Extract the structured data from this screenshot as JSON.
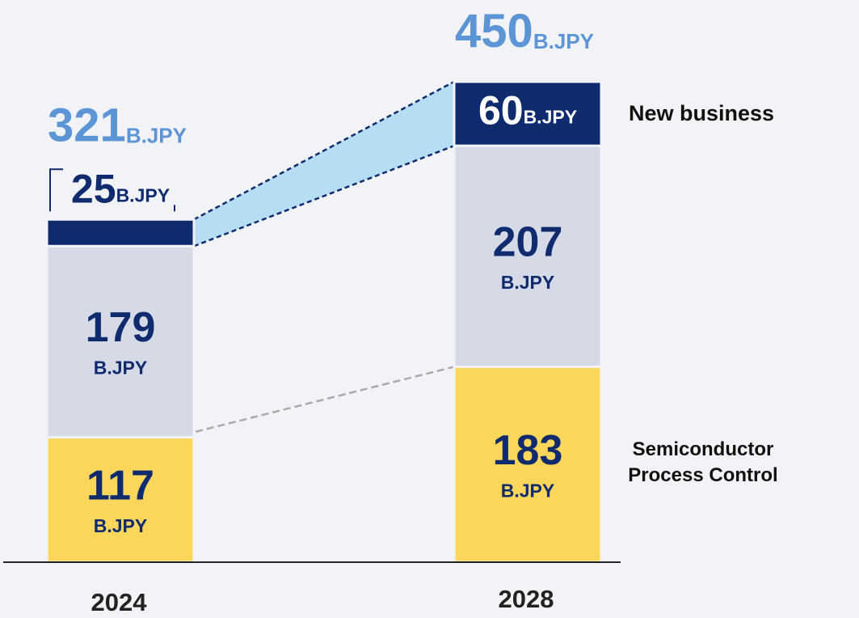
{
  "chart_data": {
    "type": "bar",
    "stacked": true,
    "categories": [
      "2024",
      "2028"
    ],
    "unit": "B.JPY",
    "series": [
      {
        "name": "Semiconductor Process Control",
        "color": "#fad75a",
        "values": [
          117,
          183
        ]
      },
      {
        "color": "#d5dae6",
        "values": [
          179,
          207
        ]
      },
      {
        "name": "New business",
        "color": "#0f2b6e",
        "values": [
          25,
          60
        ]
      }
    ],
    "totals": [
      321,
      450
    ],
    "ylim": [
      0,
      500
    ]
  }
}
